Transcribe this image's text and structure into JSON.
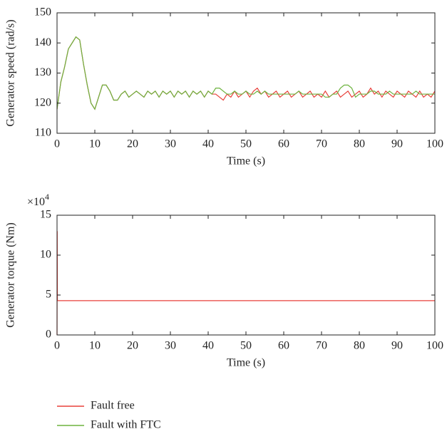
{
  "chart_data": [
    {
      "type": "line",
      "x_label": "Time (s)",
      "y_label": "Generator speed (rad/s)",
      "x": [
        0,
        1,
        2,
        3,
        4,
        5,
        6,
        7,
        8,
        9,
        10,
        11,
        12,
        13,
        14,
        15,
        16,
        17,
        18,
        19,
        20,
        21,
        22,
        23,
        24,
        25,
        26,
        27,
        28,
        29,
        30,
        31,
        32,
        33,
        34,
        35,
        36,
        37,
        38,
        39,
        40,
        41,
        42,
        43,
        44,
        45,
        46,
        47,
        48,
        49,
        50,
        51,
        52,
        53,
        54,
        55,
        56,
        57,
        58,
        59,
        60,
        61,
        62,
        63,
        64,
        65,
        66,
        67,
        68,
        69,
        70,
        71,
        72,
        73,
        74,
        75,
        76,
        77,
        78,
        79,
        80,
        81,
        82,
        83,
        84,
        85,
        86,
        87,
        88,
        89,
        90,
        91,
        92,
        93,
        94,
        95,
        96,
        97,
        98,
        99,
        100
      ],
      "series": [
        {
          "name": "Fault free",
          "color": "#e8403a",
          "values": [
            118,
            127,
            132,
            138,
            140,
            142,
            141,
            133,
            126,
            120,
            118,
            122,
            126,
            126,
            124,
            121,
            121,
            123,
            124,
            122,
            123,
            124,
            123,
            122,
            124,
            123,
            124,
            122,
            124,
            123,
            124,
            122,
            124,
            123,
            124,
            122,
            124,
            123,
            124,
            122,
            124,
            123,
            123,
            122,
            121,
            123,
            122,
            124,
            122,
            123,
            124,
            122,
            124,
            125,
            123,
            124,
            122,
            123,
            124,
            122,
            123,
            124,
            122,
            123,
            124,
            122,
            123,
            124,
            122,
            123,
            122,
            124,
            122,
            123,
            124,
            122,
            123,
            124,
            122,
            123,
            124,
            122,
            123,
            125,
            123,
            124,
            122,
            124,
            123,
            122,
            124,
            123,
            122,
            124,
            123,
            122,
            124,
            122,
            123,
            122,
            124
          ]
        },
        {
          "name": "Fault with FTC",
          "color": "#6db33f",
          "values": [
            118,
            127,
            132,
            138,
            140,
            142,
            141,
            133,
            126,
            120,
            118,
            122,
            126,
            126,
            124,
            121,
            121,
            123,
            124,
            122,
            123,
            124,
            123,
            122,
            124,
            123,
            124,
            122,
            124,
            123,
            124,
            122,
            124,
            123,
            124,
            122,
            124,
            123,
            124,
            122,
            124,
            123,
            125,
            125,
            124,
            123,
            123,
            124,
            123,
            123,
            124,
            123,
            123,
            124,
            123,
            124,
            123,
            123,
            123,
            123,
            123,
            123,
            123,
            123,
            124,
            123,
            123,
            123,
            123,
            123,
            123,
            122,
            122,
            123,
            123,
            125,
            126,
            126,
            125,
            122,
            123,
            123,
            123,
            124,
            124,
            123,
            123,
            123,
            124,
            123,
            123,
            123,
            123,
            123,
            123,
            124,
            123,
            123,
            123,
            123,
            123
          ]
        }
      ],
      "xlim": [
        0,
        100
      ],
      "xticks": [
        0,
        10,
        20,
        30,
        40,
        50,
        60,
        70,
        80,
        90,
        100
      ],
      "ylim": [
        110,
        150
      ],
      "yticks": [
        110,
        120,
        130,
        140,
        150
      ]
    },
    {
      "type": "line",
      "x_label": "Time (s)",
      "y_label": "Generator torque (Nm)",
      "y_scale_label": {
        "base": "×10",
        "exponent": "4"
      },
      "x": [
        0,
        0.05,
        0.1,
        100
      ],
      "series": [
        {
          "color": "#e8403a",
          "values": [
            0,
            13,
            4.3,
            4.3
          ]
        }
      ],
      "xlim": [
        0,
        100
      ],
      "xticks": [
        0,
        10,
        20,
        30,
        40,
        50,
        60,
        70,
        80,
        90,
        100
      ],
      "ylim": [
        0,
        15
      ],
      "yticks": [
        0,
        5,
        10,
        15
      ]
    }
  ]
}
